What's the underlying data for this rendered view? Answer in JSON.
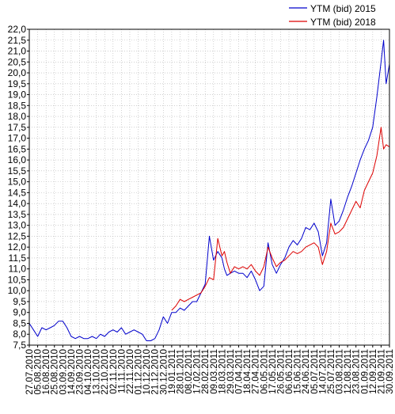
{
  "chart_data": {
    "type": "line",
    "title": "",
    "xlabel": "",
    "ylabel": "",
    "ylim": [
      7.5,
      22.0
    ],
    "grid": true,
    "legend_position": "top-right",
    "y_ticks": [
      "7,5",
      "8,0",
      "8,5",
      "9,0",
      "9,5",
      "10,0",
      "10,5",
      "11,0",
      "11,5",
      "12,0",
      "12,5",
      "13,0",
      "13,5",
      "14,0",
      "14,5",
      "15,0",
      "15,5",
      "16,0",
      "16,5",
      "17,0",
      "17,5",
      "18,0",
      "18,5",
      "19,0",
      "19,5",
      "20,0",
      "20,5",
      "21,0",
      "21,5",
      "22,0"
    ],
    "x_ticks": [
      "27.07.2010",
      "05.08.2010",
      "16.08.2010",
      "25.08.2010",
      "03.09.2010",
      "14.09.2010",
      "23.09.2010",
      "04.10.2010",
      "13.10.2010",
      "22.10.2010",
      "02.11.2010",
      "11.11.2010",
      "22.11.2010",
      "01.12.2010",
      "10.12.2010",
      "21.12.2010",
      "30.12.2010",
      "19.01.2011",
      "28.01.2011",
      "08.02.2011",
      "17.02.2011",
      "28.02.2011",
      "09.03.2011",
      "18.03.2011",
      "29.03.2011",
      "07.04.2011",
      "18.04.2011",
      "27.04.2011",
      "06.05.2011",
      "17.05.2011",
      "26.05.2011",
      "06.06.2011",
      "15.06.2011",
      "24.06.2011",
      "05.07.2011",
      "14.07.2011",
      "25.07.2011",
      "03.08.2011",
      "12.08.2011",
      "23.08.2011",
      "01.09.2011",
      "12.09.2011",
      "21.09.2011",
      "30.09.2011"
    ],
    "series": [
      {
        "name": "YTM (bid) 2015",
        "color": "#0000cc",
        "x": [
          0,
          0.5,
          1,
          1.5,
          2,
          2.5,
          3,
          3.5,
          4,
          4.5,
          5,
          5.5,
          6,
          6.5,
          7,
          7.5,
          8,
          8.5,
          9,
          9.5,
          10,
          10.5,
          11,
          11.5,
          12,
          12.5,
          13,
          13.5,
          14,
          14.5,
          15,
          15.5,
          16,
          16.5,
          17,
          17.5,
          18,
          18.5,
          19,
          19.5,
          20,
          20.5,
          21,
          21.5,
          22,
          22.5,
          23,
          23.3,
          23.6,
          24,
          24.5,
          25,
          25.5,
          26,
          26.5,
          27,
          27.5,
          28,
          28.5,
          29,
          29.5,
          30,
          30.5,
          31,
          31.5,
          32,
          32.5,
          33,
          33.5,
          34,
          34.5,
          35,
          35.5,
          36,
          36.5,
          37,
          37.5,
          38,
          38.5,
          39,
          39.5,
          40,
          40.5,
          41,
          41.5,
          42,
          42.3,
          42.6,
          43
        ],
        "values": [
          8.5,
          8.2,
          7.9,
          8.3,
          8.2,
          8.3,
          8.4,
          8.6,
          8.6,
          8.3,
          7.9,
          7.8,
          7.9,
          7.8,
          7.8,
          7.9,
          7.8,
          8.0,
          7.9,
          8.1,
          8.2,
          8.1,
          8.3,
          8.0,
          8.1,
          8.2,
          8.1,
          8.0,
          7.7,
          7.7,
          7.8,
          8.2,
          8.8,
          8.5,
          9.0,
          9.0,
          9.2,
          9.1,
          9.3,
          9.5,
          9.5,
          9.9,
          10.3,
          12.5,
          11.4,
          11.8,
          11.5,
          11.0,
          10.7,
          10.8,
          10.9,
          10.8,
          10.8,
          10.6,
          10.9,
          10.5,
          10.0,
          10.2,
          12.2,
          11.2,
          10.8,
          11.2,
          11.5,
          12.0,
          12.3,
          12.1,
          12.4,
          12.9,
          12.8,
          13.1,
          12.7,
          11.6,
          12.2,
          14.2,
          13.0,
          13.2,
          13.7,
          14.3,
          14.8,
          15.4,
          16.0,
          16.5,
          16.9,
          17.5,
          18.9,
          20.5,
          21.5,
          19.5,
          20.4
        ]
      },
      {
        "name": "YTM (bid) 2018",
        "color": "#dd0000",
        "x": [
          17,
          17.5,
          18,
          18.5,
          19,
          19.5,
          20,
          20.5,
          21,
          21.5,
          22,
          22.5,
          23,
          23.3,
          23.6,
          24,
          24.5,
          25,
          25.5,
          26,
          26.5,
          27,
          27.5,
          28,
          28.5,
          29,
          29.5,
          30,
          30.5,
          31,
          31.5,
          32,
          32.5,
          33,
          33.5,
          34,
          34.5,
          35,
          35.5,
          36,
          36.5,
          37,
          37.5,
          38,
          38.5,
          39,
          39.5,
          40,
          40.5,
          41,
          41.5,
          42,
          42.3,
          42.6,
          43
        ],
        "values": [
          9.1,
          9.3,
          9.6,
          9.5,
          9.6,
          9.7,
          9.8,
          9.9,
          10.2,
          10.6,
          10.5,
          12.4,
          11.6,
          11.8,
          11.3,
          10.8,
          11.1,
          11.0,
          11.1,
          11.0,
          11.2,
          10.9,
          10.7,
          11.1,
          12.0,
          11.5,
          11.1,
          11.3,
          11.4,
          11.6,
          11.8,
          11.7,
          11.8,
          12.0,
          12.1,
          12.2,
          12.0,
          11.2,
          11.8,
          13.1,
          12.6,
          12.7,
          12.9,
          13.3,
          13.7,
          14.1,
          13.8,
          14.6,
          15.0,
          15.4,
          16.2,
          17.5,
          16.5,
          16.7,
          16.6
        ]
      }
    ]
  }
}
